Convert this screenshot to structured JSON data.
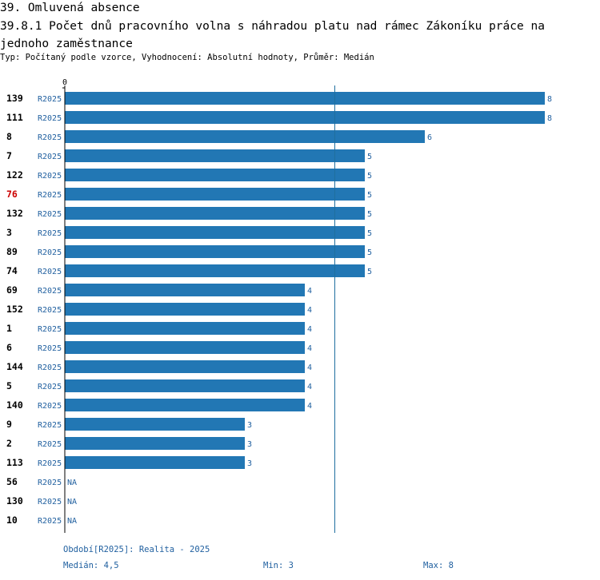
{
  "header": {
    "title_line1": "39. Omluvená absence",
    "title_line2": "39.8.1 Počet dnů pracovního volna s náhradou platu nad rámec Zákoníku práce na jednoho zaměstnance",
    "subtitle": "Typ: Počítaný podle vzorce, Vyhodnocení: Absolutní hodnoty, Průměr: Medián"
  },
  "chart_data": {
    "type": "bar",
    "orientation": "horizontal",
    "axis_zero_label": "0",
    "xlim": [
      0,
      8
    ],
    "median_line": 4.5,
    "series_label": "R2025",
    "colors": {
      "bar": "#2277b4",
      "label": "#1f5f9f",
      "highlight": "#cc0000",
      "line": "#1f6f9f"
    },
    "rows": [
      {
        "id": "139",
        "value": 8,
        "label": "8"
      },
      {
        "id": "111",
        "value": 8,
        "label": "8"
      },
      {
        "id": "8",
        "value": 6,
        "label": "6"
      },
      {
        "id": "7",
        "value": 5,
        "label": "5"
      },
      {
        "id": "122",
        "value": 5,
        "label": "5"
      },
      {
        "id": "76",
        "value": 5,
        "label": "5",
        "highlight": true
      },
      {
        "id": "132",
        "value": 5,
        "label": "5"
      },
      {
        "id": "3",
        "value": 5,
        "label": "5"
      },
      {
        "id": "89",
        "value": 5,
        "label": "5"
      },
      {
        "id": "74",
        "value": 5,
        "label": "5"
      },
      {
        "id": "69",
        "value": 4,
        "label": "4"
      },
      {
        "id": "152",
        "value": 4,
        "label": "4"
      },
      {
        "id": "1",
        "value": 4,
        "label": "4"
      },
      {
        "id": "6",
        "value": 4,
        "label": "4"
      },
      {
        "id": "144",
        "value": 4,
        "label": "4"
      },
      {
        "id": "5",
        "value": 4,
        "label": "4"
      },
      {
        "id": "140",
        "value": 4,
        "label": "4"
      },
      {
        "id": "9",
        "value": 3,
        "label": "3"
      },
      {
        "id": "2",
        "value": 3,
        "label": "3"
      },
      {
        "id": "113",
        "value": 3,
        "label": "3"
      },
      {
        "id": "56",
        "value": null,
        "label": "NA"
      },
      {
        "id": "130",
        "value": null,
        "label": "NA"
      },
      {
        "id": "10",
        "value": null,
        "label": "NA"
      }
    ]
  },
  "footer": {
    "period": "Období[R2025]: Realita - 2025",
    "median": "Medián: 4,5",
    "min": "Min: 3",
    "max": "Max: 8"
  }
}
